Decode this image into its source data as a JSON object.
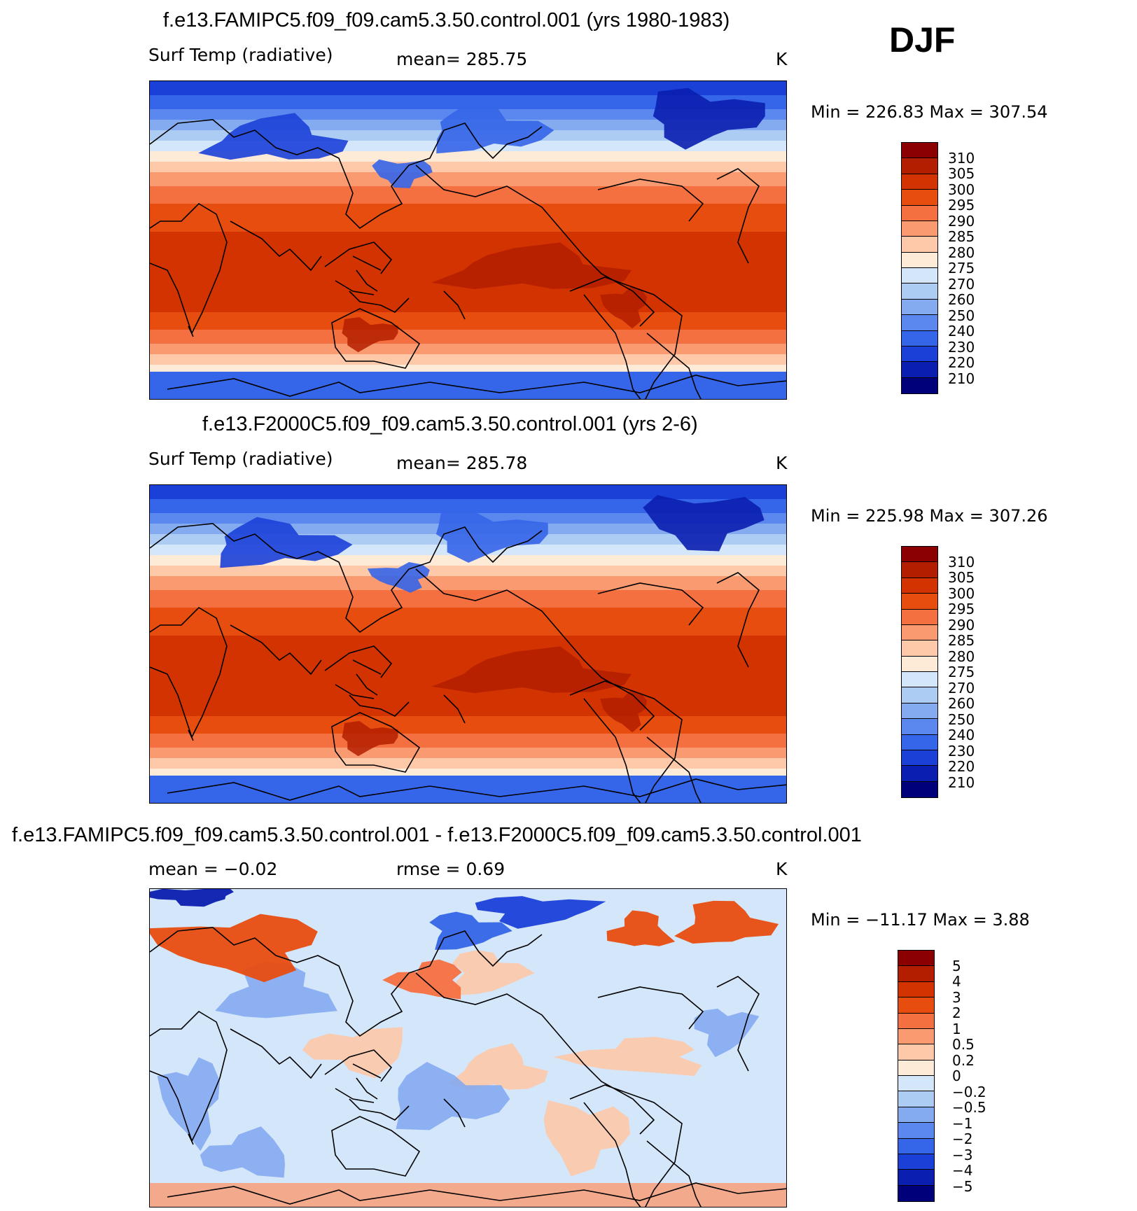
{
  "season": "DJF",
  "chart_data": [
    {
      "type": "heatmap",
      "title": "f.e13.FAMIPC5.f09_f09.cam5.3.50.control.001 (yrs 1980-1983)",
      "variable": "Surf Temp (radiative)",
      "mean_label": "mean=  285.75",
      "units": "K",
      "minmax": "Min  =  226.83  Max  =  307.54",
      "levels": [
        "310",
        "305",
        "300",
        "295",
        "290",
        "285",
        "280",
        "275",
        "270",
        "260",
        "250",
        "240",
        "230",
        "220",
        "210"
      ],
      "colors": [
        "#8b0000",
        "#b31e00",
        "#d33300",
        "#e84d10",
        "#f57040",
        "#fa9a70",
        "#fdc9a8",
        "#fdebd8",
        "#d4e6fa",
        "#acccf4",
        "#84aaf0",
        "#5b88ee",
        "#3565e8",
        "#1b40d8",
        "#0a1eb0",
        "#00007a"
      ]
    },
    {
      "type": "heatmap",
      "title": "f.e13.F2000C5.f09_f09.cam5.3.50.control.001 (yrs 2-6)",
      "variable": "Surf Temp (radiative)",
      "mean_label": "mean=  285.78",
      "units": "K",
      "minmax": "Min  =  225.98  Max  =  307.26",
      "levels": [
        "310",
        "305",
        "300",
        "295",
        "290",
        "285",
        "280",
        "275",
        "270",
        "260",
        "250",
        "240",
        "230",
        "220",
        "210"
      ],
      "colors": [
        "#8b0000",
        "#b31e00",
        "#d33300",
        "#e84d10",
        "#f57040",
        "#fa9a70",
        "#fdc9a8",
        "#fdebd8",
        "#d4e6fa",
        "#acccf4",
        "#84aaf0",
        "#5b88ee",
        "#3565e8",
        "#1b40d8",
        "#0a1eb0",
        "#00007a"
      ]
    },
    {
      "type": "heatmap",
      "title": "f.e13.FAMIPC5.f09_f09.cam5.3.50.control.001 - f.e13.F2000C5.f09_f09.cam5.3.50.control.001",
      "mean_label": "mean =    −0.02",
      "rmse_label": "rmse =     0.69",
      "units": "K",
      "minmax": "Min  =  −11.17  Max  =     3.88",
      "levels": [
        "5",
        "4",
        "3",
        "2",
        "1",
        "0.5",
        "0.2",
        "0",
        "−0.2",
        "−0.5",
        "−1",
        "−2",
        "−3",
        "−4",
        "−5"
      ],
      "colors": [
        "#8b0000",
        "#b31e00",
        "#d33300",
        "#e84d10",
        "#f57040",
        "#fa9a70",
        "#fdc9a8",
        "#fdebd8",
        "#d4e6fa",
        "#acccf4",
        "#84aaf0",
        "#5b88ee",
        "#3565e8",
        "#1b40d8",
        "#0a1eb0",
        "#00007a"
      ]
    }
  ]
}
